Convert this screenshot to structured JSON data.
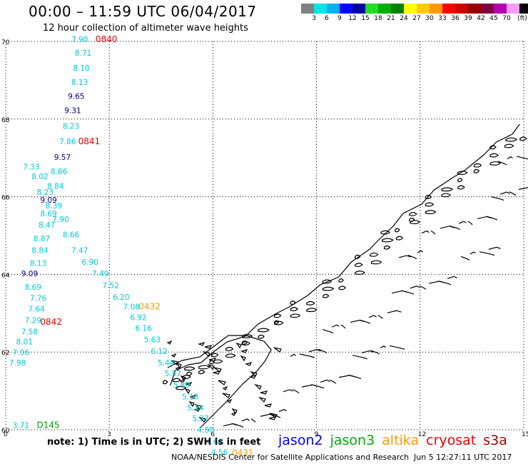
{
  "header": {
    "title": "00:00 – 11:59 UTC 06/04/2017",
    "subtitle": "12 hour collection of altimeter wave heights"
  },
  "colorbar": {
    "colors": [
      "#808080",
      "#00e5e5",
      "#00b0f0",
      "#0000ff",
      "#0000a0",
      "#22dd22",
      "#00b000",
      "#008000",
      "#ffff00",
      "#ffcc00",
      "#ff9900",
      "#ff0000",
      "#cc0000",
      "#990000",
      "#800040",
      "#b000b0",
      "#ff99ff",
      "#000000"
    ],
    "labels": [
      "3",
      "6",
      "9",
      "12",
      "15",
      "18",
      "21",
      "24",
      "27",
      "30",
      "33",
      "36",
      "39",
      "42",
      "45",
      "70",
      "(ft)"
    ]
  },
  "map": {
    "lat_ticks": [
      "60",
      "62",
      "64",
      "66",
      "68",
      "70"
    ],
    "lon_ticks": [
      "0",
      "3",
      "6",
      "9",
      "12",
      "15"
    ],
    "coast_color": "#000000",
    "grid_color": "#000000",
    "track_points": [
      {
        "lon": 1.9,
        "lat": 69.98,
        "v": "7.90",
        "color": "#00c8d8"
      },
      {
        "lon": 2.0,
        "lat": 69.63,
        "v": "8.71",
        "color": "#00c8d8"
      },
      {
        "lon": 1.95,
        "lat": 69.25,
        "v": "8.10",
        "color": "#00c8d8"
      },
      {
        "lon": 1.9,
        "lat": 68.88,
        "v": "8.13",
        "color": "#00c8d8"
      },
      {
        "lon": 1.8,
        "lat": 68.52,
        "v": "9.65",
        "color": "#00008b"
      },
      {
        "lon": 1.7,
        "lat": 68.15,
        "v": "9.31",
        "color": "#00008b"
      },
      {
        "lon": 1.65,
        "lat": 67.75,
        "v": "8.23",
        "color": "#00c8d8"
      },
      {
        "lon": 1.55,
        "lat": 67.35,
        "v": "7.86",
        "color": "#00c8d8"
      },
      {
        "lon": 1.4,
        "lat": 66.95,
        "v": "9.57",
        "color": "#00008b"
      },
      {
        "lon": 0.5,
        "lat": 66.7,
        "v": "7.33",
        "color": "#00c8d8"
      },
      {
        "lon": 1.3,
        "lat": 66.58,
        "v": "8.86",
        "color": "#00c8d8"
      },
      {
        "lon": 0.75,
        "lat": 66.45,
        "v": "8.02",
        "color": "#00c8d8"
      },
      {
        "lon": 1.2,
        "lat": 66.2,
        "v": "8.84",
        "color": "#00c8d8"
      },
      {
        "lon": 0.9,
        "lat": 66.05,
        "v": "8.23",
        "color": "#00c8d8"
      },
      {
        "lon": 1.0,
        "lat": 65.85,
        "v": "9.09",
        "color": "#00008b"
      },
      {
        "lon": 1.15,
        "lat": 65.7,
        "v": "8.39",
        "color": "#00c8d8"
      },
      {
        "lon": 1.0,
        "lat": 65.5,
        "v": "8.69",
        "color": "#00c8d8"
      },
      {
        "lon": 1.35,
        "lat": 65.35,
        "v": "7.90",
        "color": "#00c8d8"
      },
      {
        "lon": 0.95,
        "lat": 65.2,
        "v": "8.47",
        "color": "#00c8d8"
      },
      {
        "lon": 1.65,
        "lat": 64.95,
        "v": "8.66",
        "color": "#00c8d8"
      },
      {
        "lon": 0.8,
        "lat": 64.85,
        "v": "8.87",
        "color": "#00c8d8"
      },
      {
        "lon": 1.9,
        "lat": 64.55,
        "v": "7.47",
        "color": "#00c8d8"
      },
      {
        "lon": 0.75,
        "lat": 64.55,
        "v": "8.84",
        "color": "#00c8d8"
      },
      {
        "lon": 2.2,
        "lat": 64.25,
        "v": "6.90",
        "color": "#00c8d8"
      },
      {
        "lon": 0.7,
        "lat": 64.22,
        "v": "8.13",
        "color": "#00c8d8"
      },
      {
        "lon": 2.5,
        "lat": 63.95,
        "v": "7.49",
        "color": "#00c8d8"
      },
      {
        "lon": 0.45,
        "lat": 63.95,
        "v": "9.09",
        "color": "#00008b"
      },
      {
        "lon": 2.8,
        "lat": 63.65,
        "v": "7.52",
        "color": "#00c8d8"
      },
      {
        "lon": 0.55,
        "lat": 63.6,
        "v": "8.69",
        "color": "#00c8d8"
      },
      {
        "lon": 3.1,
        "lat": 63.35,
        "v": "6.20",
        "color": "#00c8d8"
      },
      {
        "lon": 0.7,
        "lat": 63.32,
        "v": "7.76",
        "color": "#00c8d8"
      },
      {
        "lon": 3.4,
        "lat": 63.1,
        "v": "7.08",
        "color": "#00c8d8"
      },
      {
        "lon": 0.65,
        "lat": 63.04,
        "v": "7.64",
        "color": "#00c8d8"
      },
      {
        "lon": 3.6,
        "lat": 62.82,
        "v": "6.92",
        "color": "#00c8d8"
      },
      {
        "lon": 0.55,
        "lat": 62.75,
        "v": "7.29",
        "color": "#00c8d8"
      },
      {
        "lon": 3.75,
        "lat": 62.55,
        "v": "6.16",
        "color": "#00c8d8"
      },
      {
        "lon": 0.45,
        "lat": 62.45,
        "v": "7.58",
        "color": "#00c8d8"
      },
      {
        "lon": 4.0,
        "lat": 62.25,
        "v": "5.63",
        "color": "#00c8d8"
      },
      {
        "lon": 0.3,
        "lat": 62.2,
        "v": "8.01",
        "color": "#00c8d8"
      },
      {
        "lon": 4.2,
        "lat": 61.95,
        "v": "6.12",
        "color": "#00c8d8"
      },
      {
        "lon": 0.2,
        "lat": 61.92,
        "v": "7.06",
        "color": "#00c8d8"
      },
      {
        "lon": 4.4,
        "lat": 61.65,
        "v": "5.44",
        "color": "#00c8d8"
      },
      {
        "lon": 0.1,
        "lat": 61.65,
        "v": "7.98",
        "color": "#00c8d8"
      },
      {
        "lon": 4.6,
        "lat": 61.38,
        "v": "5.57",
        "color": "#00c8d8"
      },
      {
        "lon": 4.85,
        "lat": 61.08,
        "v": "5.89",
        "color": "#00c8d8"
      },
      {
        "lon": 5.1,
        "lat": 60.78,
        "v": "5.18",
        "color": "#00c8d8"
      },
      {
        "lon": 5.25,
        "lat": 60.5,
        "v": "5.14",
        "color": "#00c8d8"
      },
      {
        "lon": 5.4,
        "lat": 60.22,
        "v": "5.37",
        "color": "#00c8d8"
      },
      {
        "lon": 5.55,
        "lat": 59.93,
        "v": "4.80",
        "color": "#00c8d8"
      },
      {
        "lon": 5.8,
        "lat": 59.62,
        "v": "4.64",
        "color": "#00c8d8"
      },
      {
        "lon": 5.95,
        "lat": 59.35,
        "v": "4.56",
        "color": "#00c8d8"
      },
      {
        "lon": 0.2,
        "lat": 60.05,
        "v": "3.71",
        "color": "#00c8d8"
      }
    ],
    "pass_labels": [
      {
        "lon": 2.6,
        "lat": 69.98,
        "text": "0840",
        "color": "#ee0000"
      },
      {
        "lon": 2.1,
        "lat": 67.35,
        "text": "0841",
        "color": "#ee0000"
      },
      {
        "lon": 1.0,
        "lat": 62.7,
        "text": "0842",
        "color": "#ee0000"
      },
      {
        "lon": 3.85,
        "lat": 63.1,
        "text": "0432",
        "color": "#ff9900"
      },
      {
        "lon": 6.55,
        "lat": 59.33,
        "text": "0431",
        "color": "#ff9900"
      },
      {
        "lon": 0.9,
        "lat": 60.05,
        "text": "D145",
        "color": "#009900"
      }
    ]
  },
  "footnote": "note:  1) Time is in UTC;  2) SWH is in feet",
  "legend": [
    {
      "name": "jason2",
      "color": "#0000ee"
    },
    {
      "name": "jason3",
      "color": "#00aa00"
    },
    {
      "name": "altika",
      "color": "#ff9900"
    },
    {
      "name": "cryosat",
      "color": "#ee0000"
    },
    {
      "name": "s3a",
      "color": "#aa0000"
    }
  ],
  "credit": "NOAA/NESDIS Center for Satellite Applications and Research",
  "timestamp": "Jun  5 12:27:11 UTC 2017"
}
